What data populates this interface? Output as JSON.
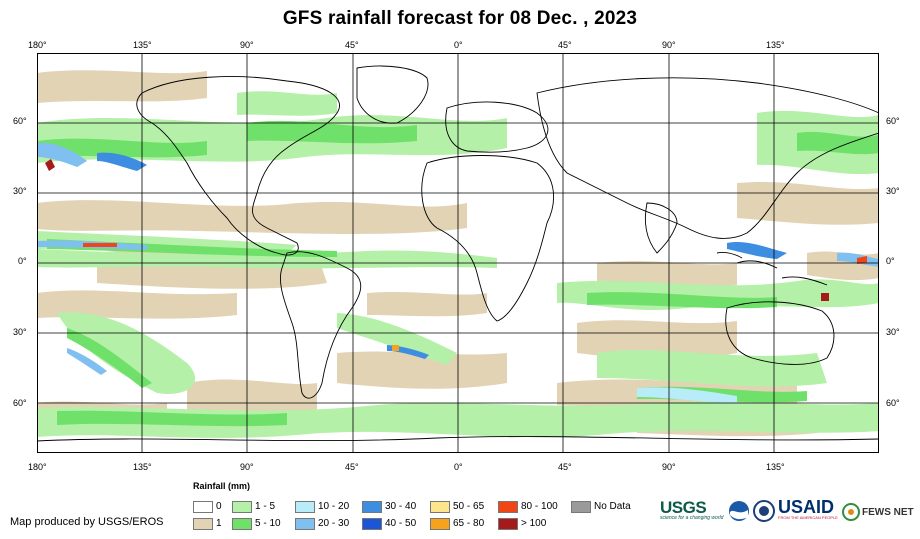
{
  "title": "GFS rainfall forecast for 08 Dec. , 2023",
  "top_axis": [
    "180°",
    "135°",
    "90°",
    "45°",
    "0°",
    "45°",
    "90°",
    "135°"
  ],
  "bottom_axis": [
    "180°",
    "135°",
    "90°",
    "45°",
    "0°",
    "45°",
    "90°",
    "135°"
  ],
  "left_axis": [
    "60°",
    "30°",
    "0°",
    "30°",
    "60°"
  ],
  "right_axis": [
    "60°",
    "30°",
    "0°",
    "30°",
    "60°"
  ],
  "legend": {
    "title": "Rainfall (mm)",
    "items": [
      {
        "label": "0",
        "color": "#ffffff"
      },
      {
        "label": "1",
        "color": "#e2d3b5"
      },
      {
        "label": "1 - 5",
        "color": "#b4f0a8"
      },
      {
        "label": "5 - 10",
        "color": "#6fe06a"
      },
      {
        "label": "10 - 20",
        "color": "#b8ecf8"
      },
      {
        "label": "20 - 30",
        "color": "#7fc0f0"
      },
      {
        "label": "30 - 40",
        "color": "#3d8de0"
      },
      {
        "label": "40 - 50",
        "color": "#1c55d6"
      },
      {
        "label": "50 - 65",
        "color": "#fde58c"
      },
      {
        "label": "65 - 80",
        "color": "#f6a21d"
      },
      {
        "label": "80 - 100",
        "color": "#f04515"
      },
      {
        "label": "> 100",
        "color": "#a51a1a"
      },
      {
        "label": "No Data",
        "color": "#9a9a9a"
      }
    ]
  },
  "credit": "Map produced by USGS/EROS",
  "logos": {
    "usgs": "USGS",
    "usgs_tagline": "science for a changing world",
    "usaid": "USAID",
    "usaid_tagline": "FROM THE AMERICAN PEOPLE",
    "fews": "FEWS NET"
  },
  "colors": {
    "frame": "#000000",
    "grid": "#000000",
    "dry": "#e2d3b5",
    "light": "#b4f0a8",
    "moderate": "#6fe06a",
    "heavy": "#7fc0f0"
  }
}
